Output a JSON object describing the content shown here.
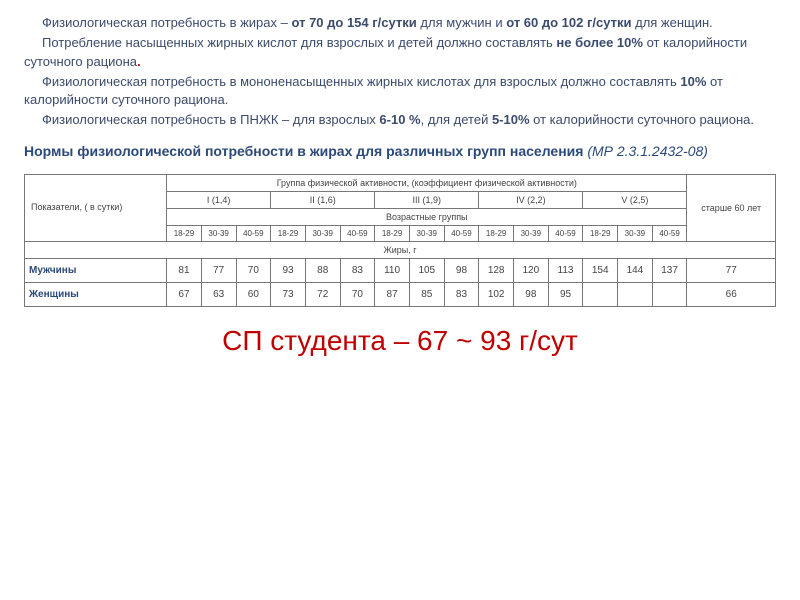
{
  "intro": {
    "line1_a": "Физиологическая потребность в жирах – ",
    "line1_b": "от 70 до 154 г/сутки",
    "line1_c": " для мужчин и ",
    "line1_d": "от 60 до 102 г/сутки",
    "line1_e": " для женщин.",
    "line2_a": "Потребление насыщенных жирных кислот для взрослых и детей должно составлять ",
    "line2_b": "не более 10%",
    "line2_c": " от калорийности суточного рациона",
    "line2_d": ".",
    "line3_a": "Физиологическая потребность в мононенасыщенных жирных кислотах для взрослых  должно составлять ",
    "line3_b": "10%",
    "line3_c": "  от калорийности суточного рациона.",
    "line4_a": "Физиологическая потребность в ПНЖК – для взрослых ",
    "line4_b": "6-10 %",
    "line4_c": ", для детей ",
    "line4_d": "5-10%",
    "line4_e": " от калорийности суточного рациона."
  },
  "subtitle": {
    "main": "Нормы физиологической потребности в жирах для различных групп населения",
    "ref": "  (МР 2.3.1.2432-08)"
  },
  "table": {
    "row_header": "Показатели, ( в сутки)",
    "group_header": "Группа физической активности, (коэффициент физической активности)",
    "groups": [
      "I (1,4)",
      "II (1,6)",
      "III (1,9)",
      "IV (2,2)",
      "V (2,5)"
    ],
    "older_label": "старше 60 лет",
    "age_header": "Возрастные группы",
    "ages_g1": [
      "18-29",
      "30-39",
      "40-59"
    ],
    "ages_g2": [
      "18-29",
      "30-39",
      "40-59"
    ],
    "ages_g3": [
      "18-29",
      "30-39",
      "40-59"
    ],
    "ages_g4": [
      "18-29",
      "30-39",
      "40-59"
    ],
    "ages_g5": [
      "18-29",
      "30-39",
      "40-59"
    ],
    "unit_row": "Жиры, г",
    "men_label": "Мужчины",
    "men": [
      "81",
      "77",
      "70",
      "93",
      "88",
      "83",
      "110",
      "105",
      "98",
      "128",
      "120",
      "113",
      "154",
      "144",
      "137",
      "77"
    ],
    "women_label": "Женщины",
    "women": [
      "67",
      "63",
      "60",
      "73",
      "72",
      "70",
      "87",
      "85",
      "83",
      "102",
      "98",
      "95",
      "",
      "",
      "",
      "66"
    ]
  },
  "bottom": "СП студента – 67 ~ 93 г/сут"
}
